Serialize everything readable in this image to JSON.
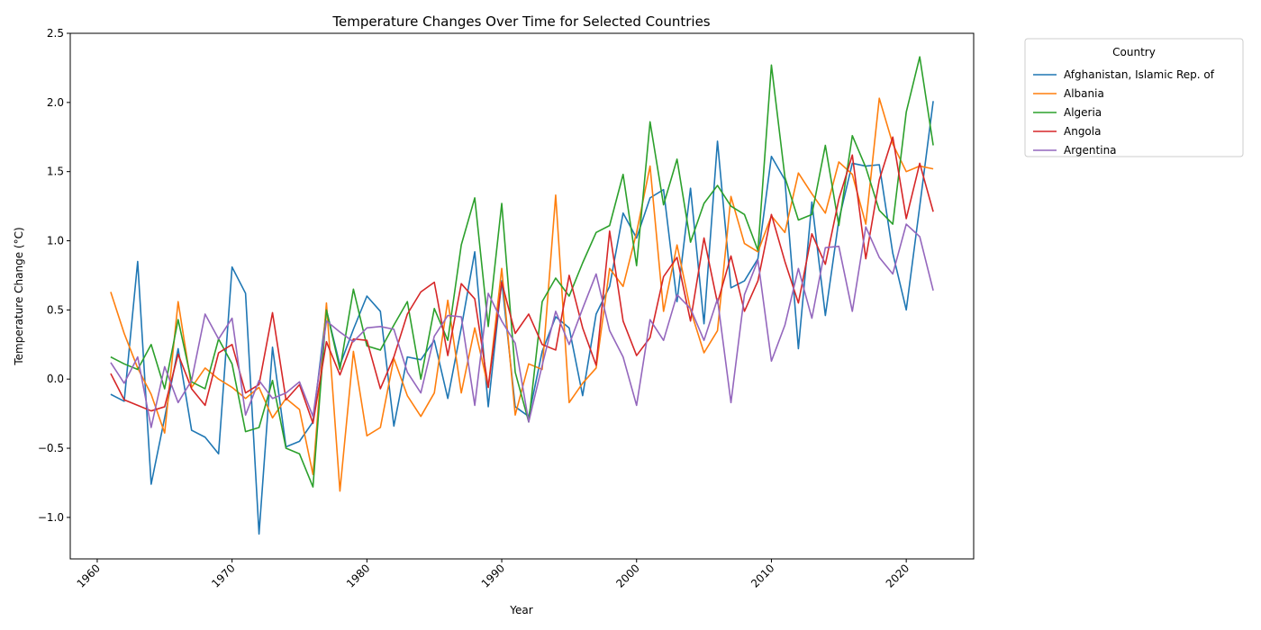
{
  "chart_data": {
    "type": "line",
    "title": "Temperature Changes Over Time for Selected Countries",
    "xlabel": "Year",
    "ylabel": "Temperature Change (°C)",
    "xlim": [
      1958,
      2025
    ],
    "ylim": [
      -1.3,
      2.5
    ],
    "xticks": [
      1960,
      1970,
      1980,
      1990,
      2000,
      2010,
      2020
    ],
    "yticks": [
      -1.0,
      -0.5,
      0.0,
      0.5,
      1.0,
      1.5,
      2.0,
      2.5
    ],
    "ytick_labels": [
      "−1.0",
      "−0.5",
      "0.0",
      "0.5",
      "1.0",
      "1.5",
      "2.0",
      "2.5"
    ],
    "grid": false,
    "legend": {
      "title": "Country",
      "placement": "outside-top-right"
    },
    "x": [
      1961,
      1962,
      1963,
      1964,
      1965,
      1966,
      1967,
      1968,
      1969,
      1970,
      1971,
      1972,
      1973,
      1974,
      1975,
      1976,
      1977,
      1978,
      1979,
      1980,
      1981,
      1982,
      1983,
      1984,
      1985,
      1986,
      1987,
      1988,
      1989,
      1990,
      1991,
      1992,
      1993,
      1994,
      1995,
      1996,
      1997,
      1998,
      1999,
      2000,
      2001,
      2002,
      2003,
      2004,
      2005,
      2006,
      2007,
      2008,
      2009,
      2010,
      2011,
      2012,
      2013,
      2014,
      2015,
      2016,
      2017,
      2018,
      2019,
      2020,
      2021,
      2022
    ],
    "series": [
      {
        "name": "Afghanistan, Islamic Rep. of",
        "color": "#1f77b4",
        "values": [
          -0.11,
          -0.16,
          0.85,
          -0.76,
          -0.28,
          0.22,
          -0.37,
          -0.42,
          -0.54,
          0.81,
          0.62,
          -1.12,
          0.23,
          -0.49,
          -0.45,
          -0.31,
          0.5,
          0.1,
          0.36,
          0.6,
          0.49,
          -0.34,
          0.16,
          0.14,
          0.28,
          -0.14,
          0.37,
          0.92,
          -0.2,
          0.71,
          -0.2,
          -0.27,
          0.2,
          0.45,
          0.37,
          -0.12,
          0.47,
          0.67,
          1.2,
          1.02,
          1.31,
          1.37,
          0.56,
          1.38,
          0.4,
          1.72,
          0.66,
          0.71,
          0.87,
          1.61,
          1.44,
          0.22,
          1.28,
          0.46,
          1.15,
          1.56,
          1.54,
          1.55,
          0.91,
          0.5,
          1.25,
          2.01
        ]
      },
      {
        "name": "Albania",
        "color": "#ff7f0e",
        "values": [
          0.63,
          0.33,
          0.08,
          -0.11,
          -0.39,
          0.56,
          -0.06,
          0.08,
          0.0,
          -0.06,
          -0.14,
          -0.06,
          -0.28,
          -0.14,
          -0.22,
          -0.69,
          0.55,
          -0.81,
          0.2,
          -0.41,
          -0.35,
          0.15,
          -0.12,
          -0.27,
          -0.1,
          0.57,
          -0.1,
          0.37,
          -0.06,
          0.8,
          -0.26,
          0.11,
          0.07,
          1.33,
          -0.17,
          -0.03,
          0.08,
          0.8,
          0.67,
          1.06,
          1.54,
          0.49,
          0.97,
          0.5,
          0.19,
          0.35,
          1.32,
          0.98,
          0.92,
          1.18,
          1.06,
          1.49,
          1.34,
          1.2,
          1.57,
          1.48,
          1.12,
          2.03,
          1.7,
          1.5,
          1.54,
          1.52
        ]
      },
      {
        "name": "Algeria",
        "color": "#2ca02c",
        "values": [
          0.16,
          0.11,
          0.07,
          0.25,
          -0.07,
          0.43,
          -0.02,
          -0.07,
          0.29,
          0.11,
          -0.38,
          -0.35,
          -0.01,
          -0.5,
          -0.54,
          -0.78,
          0.5,
          0.07,
          0.65,
          0.24,
          0.21,
          0.39,
          0.56,
          0.0,
          0.51,
          0.28,
          0.97,
          1.31,
          0.38,
          1.27,
          0.05,
          -0.31,
          0.56,
          0.73,
          0.6,
          0.84,
          1.06,
          1.11,
          1.48,
          0.82,
          1.86,
          1.26,
          1.59,
          0.99,
          1.27,
          1.4,
          1.25,
          1.19,
          0.93,
          2.27,
          1.46,
          1.15,
          1.19,
          1.69,
          1.11,
          1.76,
          1.53,
          1.22,
          1.12,
          1.93,
          2.33,
          1.69
        ]
      },
      {
        "name": "Angola",
        "color": "#d62728",
        "values": [
          0.04,
          -0.15,
          -0.19,
          -0.23,
          -0.2,
          0.18,
          -0.07,
          -0.19,
          0.19,
          0.25,
          -0.1,
          -0.04,
          0.48,
          -0.15,
          -0.04,
          -0.32,
          0.27,
          0.03,
          0.29,
          0.28,
          -0.07,
          0.16,
          0.47,
          0.63,
          0.7,
          0.17,
          0.69,
          0.58,
          -0.06,
          0.7,
          0.33,
          0.47,
          0.25,
          0.21,
          0.75,
          0.37,
          0.1,
          1.07,
          0.42,
          0.17,
          0.3,
          0.74,
          0.88,
          0.42,
          1.02,
          0.55,
          0.89,
          0.49,
          0.71,
          1.19,
          0.85,
          0.55,
          1.05,
          0.83,
          1.3,
          1.62,
          0.87,
          1.44,
          1.75,
          1.16,
          1.56,
          1.21
        ]
      },
      {
        "name": "Argentina",
        "color": "#9467bd",
        "values": [
          0.12,
          -0.03,
          0.16,
          -0.35,
          0.09,
          -0.17,
          -0.01,
          0.47,
          0.29,
          0.44,
          -0.26,
          -0.01,
          -0.14,
          -0.1,
          -0.02,
          -0.27,
          0.42,
          0.34,
          0.27,
          0.37,
          0.38,
          0.36,
          0.05,
          -0.1,
          0.31,
          0.46,
          0.45,
          -0.19,
          0.62,
          0.42,
          0.26,
          -0.31,
          0.1,
          0.49,
          0.25,
          0.51,
          0.76,
          0.35,
          0.16,
          -0.19,
          0.43,
          0.28,
          0.61,
          0.51,
          0.28,
          0.58,
          -0.17,
          0.61,
          0.86,
          0.13,
          0.39,
          0.8,
          0.44,
          0.95,
          0.96,
          0.49,
          1.1,
          0.88,
          0.76,
          1.12,
          1.03,
          0.64
        ]
      }
    ]
  }
}
